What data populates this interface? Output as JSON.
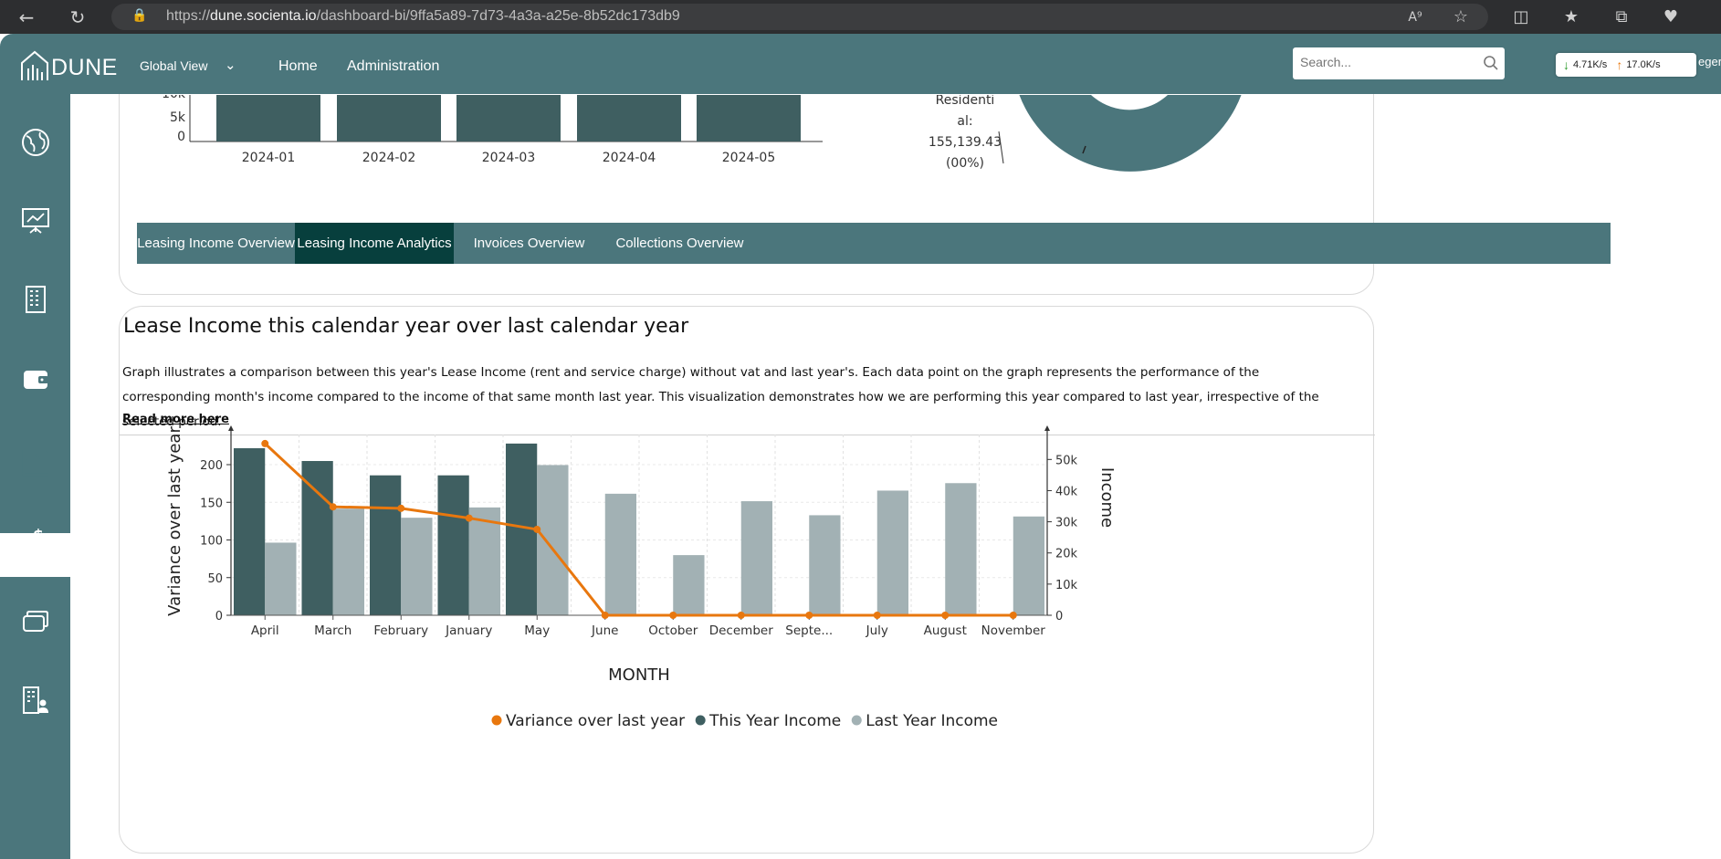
{
  "browser": {
    "url_prefix": "https://",
    "url_domain": "dune.socienta.io",
    "url_path": "/dashboard-bi/9ffa5a89-7d73-4a3a-a25e-8b52dc173db9"
  },
  "header": {
    "logo_text": "DUNE",
    "global_view": "Global View",
    "nav": [
      "Home",
      "Administration"
    ],
    "search_placeholder": "Search...",
    "net_down": "4.71K/s",
    "net_up": "17.0K/s",
    "user_fragment": "eger"
  },
  "top_card": {
    "y_ticks_visible": [
      "10k",
      "5k",
      "0"
    ],
    "x_labels": [
      "2024-01",
      "2024-02",
      "2024-03",
      "2024-04",
      "2024-05"
    ],
    "pie_label_lines": [
      "Residenti",
      "al:",
      "155,139.43",
      "(00%)"
    ]
  },
  "tabs": [
    {
      "label": "Leasing Income Overview",
      "active": false
    },
    {
      "label": "Leasing Income Analytics",
      "active": true
    },
    {
      "label": "Invoices Overview",
      "active": false
    },
    {
      "label": "Collections Overview",
      "active": false
    }
  ],
  "section": {
    "title": "Lease Income this calendar year over last calendar year",
    "description": "Graph illustrates a comparison between this year's Lease Income (rent and service charge) without vat and last year's. Each data point on the graph represents the performance of the corresponding month's income compared to the income of that same month last year. This visualization demonstrates how we are performing this year compared to last year, irrespective of the selected period.",
    "read_more": "Read more here"
  },
  "colors": {
    "brand": "#4b767c",
    "active_tab": "#073f3d",
    "this_year": "#3f5f61",
    "last_year": "#a2b1b4",
    "variance": "#e8770e"
  },
  "chart_data": {
    "type": "bar",
    "title": "",
    "xlabel": "MONTH",
    "ylabel_left": "Variance over last year",
    "ylabel_right": "Income",
    "categories": [
      "April",
      "March",
      "February",
      "January",
      "May",
      "June",
      "October",
      "December",
      "Septe...",
      "July",
      "August",
      "November"
    ],
    "left_axis": {
      "ticks": [
        0,
        50,
        100,
        150,
        200
      ],
      "ylim": [
        0,
        240
      ]
    },
    "right_axis": {
      "ticks": [
        0,
        10000,
        20000,
        30000,
        40000,
        50000
      ],
      "tick_labels": [
        "0",
        "10k",
        "20k",
        "30k",
        "40k",
        "50k"
      ],
      "ylim": [
        0,
        58000
      ]
    },
    "series": [
      {
        "name": "Variance over last year",
        "type": "line",
        "axis": "left",
        "values": [
          228,
          144,
          142,
          129,
          114,
          0,
          0,
          0,
          0,
          0,
          0,
          0
        ]
      },
      {
        "name": "This Year Income",
        "type": "bar",
        "axis": "right",
        "values": [
          53600,
          49500,
          44900,
          44900,
          55100,
          0,
          0,
          0,
          0,
          0,
          0,
          0
        ]
      },
      {
        "name": "Last Year Income",
        "type": "bar",
        "axis": "right",
        "values": [
          23300,
          34200,
          31300,
          34600,
          48200,
          39000,
          19300,
          36600,
          32100,
          40000,
          42400,
          31700
        ]
      }
    ],
    "legend": [
      "Variance over last year",
      "This Year Income",
      "Last Year Income"
    ],
    "legend_position": "bottom",
    "grid": true
  }
}
